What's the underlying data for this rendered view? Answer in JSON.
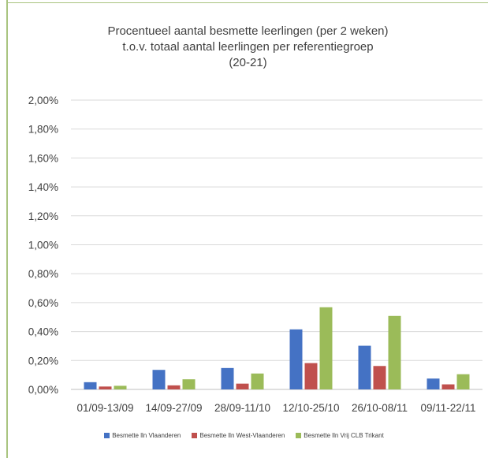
{
  "chart_data": {
    "type": "bar",
    "title": [
      "Procentueel aantal besmette leerlingen (per 2 weken)",
      "t.o.v. totaal aantal leerlingen per referentiegroep",
      "(20-21)"
    ],
    "xlabel": "",
    "ylabel": "",
    "ylim": [
      0,
      0.02
    ],
    "yticks": [
      "0,00%",
      "0,20%",
      "0,40%",
      "0,60%",
      "0,80%",
      "1,00%",
      "1,20%",
      "1,40%",
      "1,60%",
      "1,80%",
      "2,00%"
    ],
    "categories": [
      "01/09-13/09",
      "14/09-27/09",
      "28/09-11/10",
      "12/10-25/10",
      "26/10-08/11",
      "09/11-22/11"
    ],
    "grid": true,
    "legend_position": "bottom",
    "series": [
      {
        "name": "Besmette lln  Vlaanderen",
        "color": "#4472c4",
        "values": [
          0.0005,
          0.00135,
          0.00148,
          0.00415,
          0.00302,
          0.00075
        ]
      },
      {
        "name": "Besmette lln West-Vlaanderen",
        "color": "#c0504d",
        "values": [
          0.0002,
          0.00028,
          0.0004,
          0.00182,
          0.00162,
          0.00035
        ]
      },
      {
        "name": "Besmette lln Vrij CLB Trikant",
        "color": "#9bbb59",
        "values": [
          0.00025,
          0.0007,
          0.0011,
          0.00568,
          0.00508,
          0.00105
        ]
      }
    ]
  }
}
